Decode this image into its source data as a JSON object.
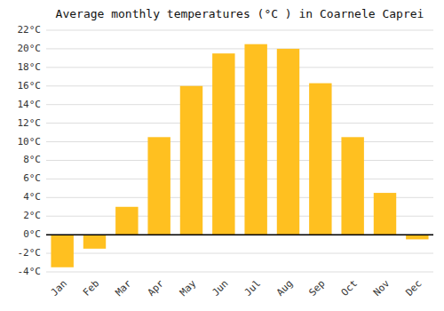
{
  "chart_data": {
    "type": "bar",
    "title": "Average monthly temperatures (°C ) in Coarnele Caprei",
    "categories": [
      "Jan",
      "Feb",
      "Mar",
      "Apr",
      "May",
      "Jun",
      "Jul",
      "Aug",
      "Sep",
      "Oct",
      "Nov",
      "Dec"
    ],
    "values": [
      -3.5,
      -1.5,
      3.0,
      10.5,
      16.0,
      19.5,
      20.5,
      20.0,
      16.3,
      10.5,
      4.5,
      -0.5
    ],
    "color": "#FFC020",
    "ylim": [
      -4,
      22
    ],
    "yticks": [
      {
        "value": -4,
        "label": "-4°C"
      },
      {
        "value": -2,
        "label": "-2°C"
      },
      {
        "value": 0,
        "label": "0°C"
      },
      {
        "value": 2,
        "label": "2°C"
      },
      {
        "value": 4,
        "label": "4°C"
      },
      {
        "value": 6,
        "label": "6°C"
      },
      {
        "value": 8,
        "label": "8°C"
      },
      {
        "value": 10,
        "label": "10°C"
      },
      {
        "value": 12,
        "label": "12°C"
      },
      {
        "value": 14,
        "label": "14°C"
      },
      {
        "value": 16,
        "label": "16°C"
      },
      {
        "value": 18,
        "label": "18°C"
      },
      {
        "value": 20,
        "label": "20°C"
      },
      {
        "value": 22,
        "label": "22°C"
      }
    ],
    "grid": true
  }
}
